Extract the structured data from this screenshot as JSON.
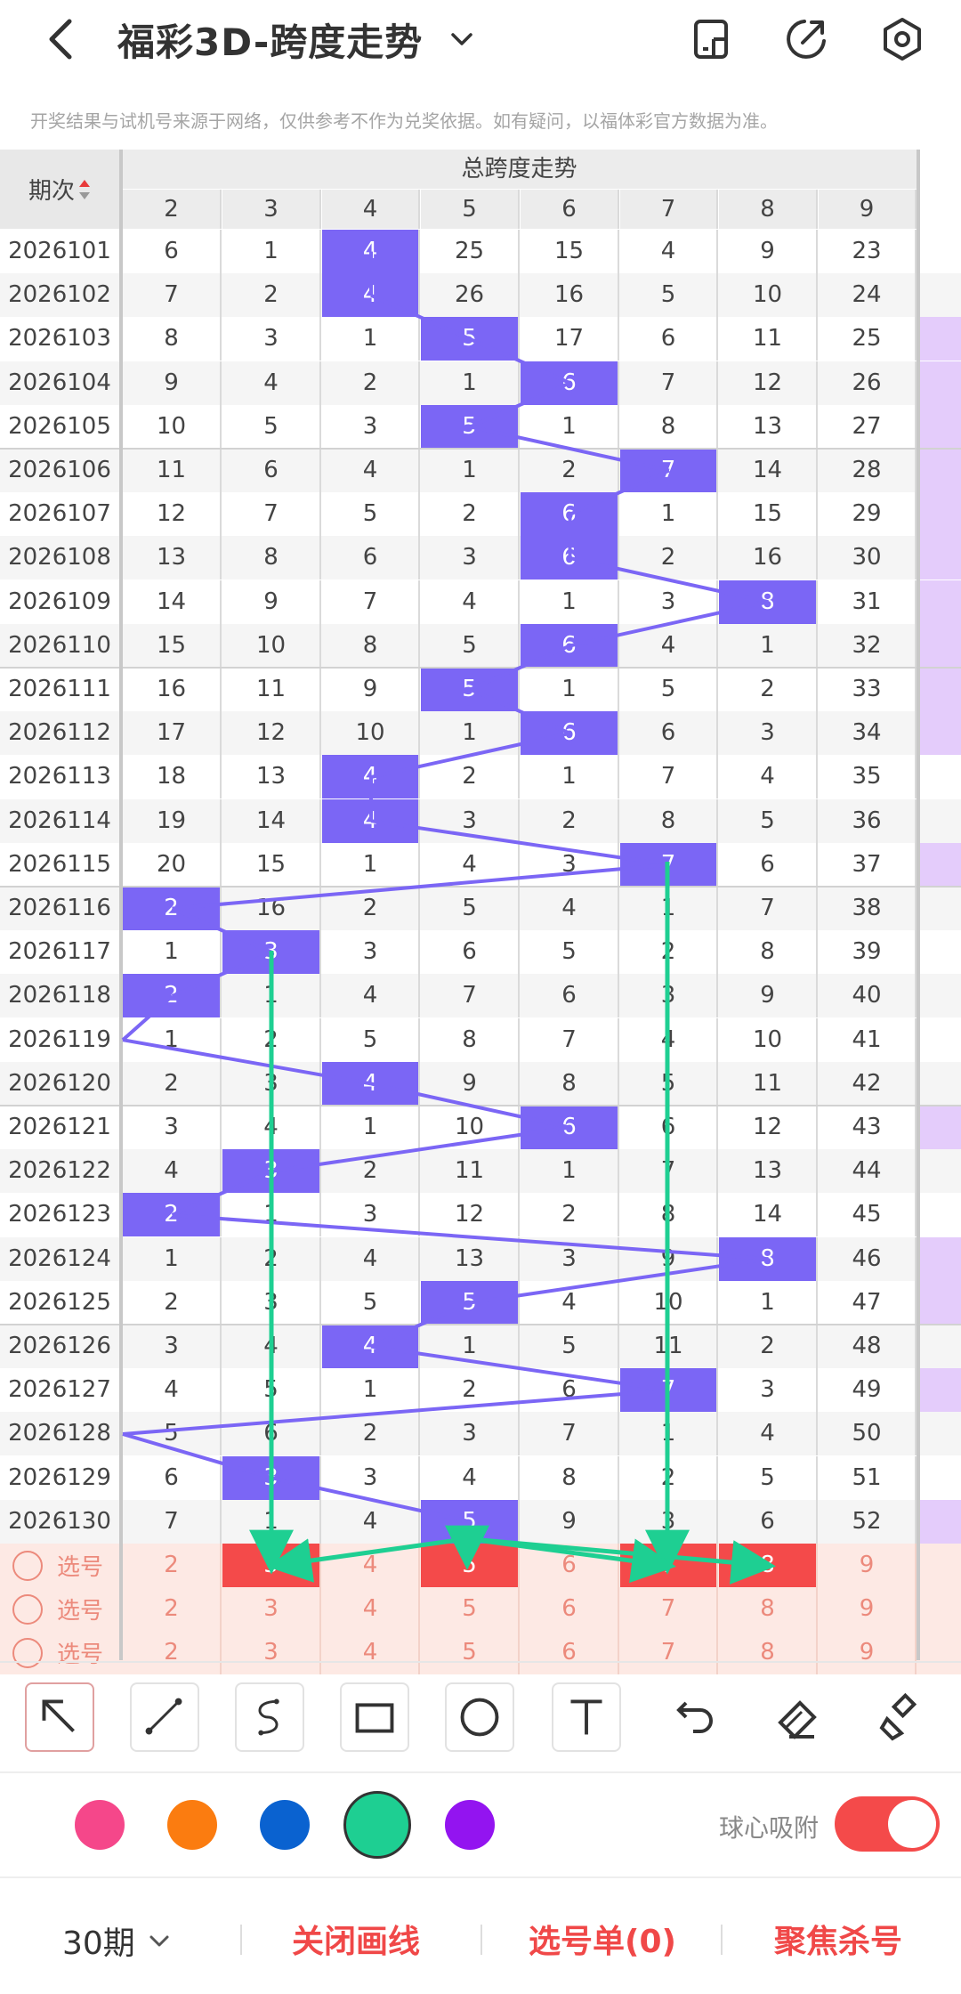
{
  "header": {
    "title": "福彩3D-跨度走势",
    "back_icon": "chevron-left-icon",
    "icons": [
      "layout-icon",
      "share-icon",
      "settings-icon"
    ]
  },
  "notice": "开奖结果与试机号来源于网络，仅供参考不作为兑奖依据。如有疑问，以福体彩官方数据为准。",
  "table": {
    "corner_label": "期次",
    "group_title": "总跨度走势",
    "columns": [
      "2",
      "3",
      "4",
      "5",
      "6",
      "7",
      "8",
      "9"
    ],
    "rows": [
      {
        "period": "2026101",
        "cells": [
          "6",
          "1",
          "4",
          "25",
          "15",
          "4",
          "9",
          "23"
        ],
        "hit": 2
      },
      {
        "period": "2026102",
        "cells": [
          "7",
          "2",
          "4",
          "26",
          "16",
          "5",
          "10",
          "24"
        ],
        "hit": 2
      },
      {
        "period": "2026103",
        "cells": [
          "8",
          "3",
          "1",
          "5",
          "17",
          "6",
          "11",
          "25"
        ],
        "hit": 3
      },
      {
        "period": "2026104",
        "cells": [
          "9",
          "4",
          "2",
          "1",
          "6",
          "7",
          "12",
          "26"
        ],
        "hit": 4
      },
      {
        "period": "2026105",
        "cells": [
          "10",
          "5",
          "3",
          "5",
          "1",
          "8",
          "13",
          "27"
        ],
        "hit": 3
      },
      {
        "period": "2026106",
        "cells": [
          "11",
          "6",
          "4",
          "1",
          "2",
          "7",
          "14",
          "28"
        ],
        "hit": 5
      },
      {
        "period": "2026107",
        "cells": [
          "12",
          "7",
          "5",
          "2",
          "6",
          "1",
          "15",
          "29"
        ],
        "hit": 4
      },
      {
        "period": "2026108",
        "cells": [
          "13",
          "8",
          "6",
          "3",
          "6",
          "2",
          "16",
          "30"
        ],
        "hit": 4
      },
      {
        "period": "2026109",
        "cells": [
          "14",
          "9",
          "7",
          "4",
          "1",
          "3",
          "8",
          "31"
        ],
        "hit": 6
      },
      {
        "period": "2026110",
        "cells": [
          "15",
          "10",
          "8",
          "5",
          "6",
          "4",
          "1",
          "32"
        ],
        "hit": 4
      },
      {
        "period": "2026111",
        "cells": [
          "16",
          "11",
          "9",
          "5",
          "1",
          "5",
          "2",
          "33"
        ],
        "hit": 3
      },
      {
        "period": "2026112",
        "cells": [
          "17",
          "12",
          "10",
          "1",
          "6",
          "6",
          "3",
          "34"
        ],
        "hit": 4
      },
      {
        "period": "2026113",
        "cells": [
          "18",
          "13",
          "4",
          "2",
          "1",
          "7",
          "4",
          "35"
        ],
        "hit": 2
      },
      {
        "period": "2026114",
        "cells": [
          "19",
          "14",
          "4",
          "3",
          "2",
          "8",
          "5",
          "36"
        ],
        "hit": 2
      },
      {
        "period": "2026115",
        "cells": [
          "20",
          "15",
          "1",
          "4",
          "3",
          "7",
          "6",
          "37"
        ],
        "hit": 5
      },
      {
        "period": "2026116",
        "cells": [
          "2",
          "16",
          "2",
          "5",
          "4",
          "1",
          "7",
          "38"
        ],
        "hit": 0
      },
      {
        "period": "2026117",
        "cells": [
          "1",
          "3",
          "3",
          "6",
          "5",
          "2",
          "8",
          "39"
        ],
        "hit": 1
      },
      {
        "period": "2026118",
        "cells": [
          "2",
          "1",
          "4",
          "7",
          "6",
          "3",
          "9",
          "40"
        ],
        "hit": 0
      },
      {
        "period": "2026119",
        "cells": [
          "1",
          "2",
          "5",
          "8",
          "7",
          "4",
          "10",
          "41"
        ],
        "hit": -1
      },
      {
        "period": "2026120",
        "cells": [
          "2",
          "3",
          "4",
          "9",
          "8",
          "5",
          "11",
          "42"
        ],
        "hit": 2
      },
      {
        "period": "2026121",
        "cells": [
          "3",
          "4",
          "1",
          "10",
          "6",
          "6",
          "12",
          "43"
        ],
        "hit": 4
      },
      {
        "period": "2026122",
        "cells": [
          "4",
          "3",
          "2",
          "11",
          "1",
          "7",
          "13",
          "44"
        ],
        "hit": 1
      },
      {
        "period": "2026123",
        "cells": [
          "2",
          "1",
          "3",
          "12",
          "2",
          "8",
          "14",
          "45"
        ],
        "hit": 0
      },
      {
        "period": "2026124",
        "cells": [
          "1",
          "2",
          "4",
          "13",
          "3",
          "9",
          "8",
          "46"
        ],
        "hit": 6
      },
      {
        "period": "2026125",
        "cells": [
          "2",
          "3",
          "5",
          "5",
          "4",
          "10",
          "1",
          "47"
        ],
        "hit": 3
      },
      {
        "period": "2026126",
        "cells": [
          "3",
          "4",
          "4",
          "1",
          "5",
          "11",
          "2",
          "48"
        ],
        "hit": 2
      },
      {
        "period": "2026127",
        "cells": [
          "4",
          "5",
          "1",
          "2",
          "6",
          "7",
          "3",
          "49"
        ],
        "hit": 5
      },
      {
        "period": "2026128",
        "cells": [
          "5",
          "6",
          "2",
          "3",
          "7",
          "1",
          "4",
          "50"
        ],
        "hit": -1
      },
      {
        "period": "2026129",
        "cells": [
          "6",
          "3",
          "3",
          "4",
          "8",
          "2",
          "5",
          "51"
        ],
        "hit": 1
      },
      {
        "period": "2026130",
        "cells": [
          "7",
          "1",
          "4",
          "5",
          "9",
          "3",
          "6",
          "52"
        ],
        "hit": 3
      }
    ],
    "pick_rows": [
      {
        "label": "选号",
        "cells": [
          "2",
          "3",
          "4",
          "5",
          "6",
          "7",
          "8",
          "9"
        ],
        "selected": [
          1,
          3,
          5,
          6
        ]
      },
      {
        "label": "选号",
        "cells": [
          "2",
          "3",
          "4",
          "5",
          "6",
          "7",
          "8",
          "9"
        ],
        "selected": []
      },
      {
        "label": "选号",
        "cells": [
          "2",
          "3",
          "4",
          "5",
          "6",
          "7",
          "8",
          "9"
        ],
        "selected": []
      }
    ],
    "extra_col_on_rows": [
      2,
      3,
      4,
      5,
      6,
      7,
      8,
      9,
      10,
      11,
      14,
      20,
      23,
      24,
      26,
      29
    ]
  },
  "tools": [
    "arrow-tool-icon",
    "line-tool-icon",
    "curve-tool-icon",
    "rectangle-tool-icon",
    "circle-tool-icon",
    "text-tool-icon",
    "undo-icon",
    "eraser-icon",
    "brush-clear-icon"
  ],
  "colors": [
    "#f5478a",
    "#fb7c10",
    "#0a62d0",
    "#1ecf92",
    "#9314f0"
  ],
  "selected_color": "#1ecf92",
  "snap_label": "球心吸附",
  "snap_on": true,
  "bottom": {
    "period_select": "30期",
    "close_lines": "关闭画线",
    "pick_list": "选号单(0)",
    "focus_kill": "聚焦杀号"
  }
}
